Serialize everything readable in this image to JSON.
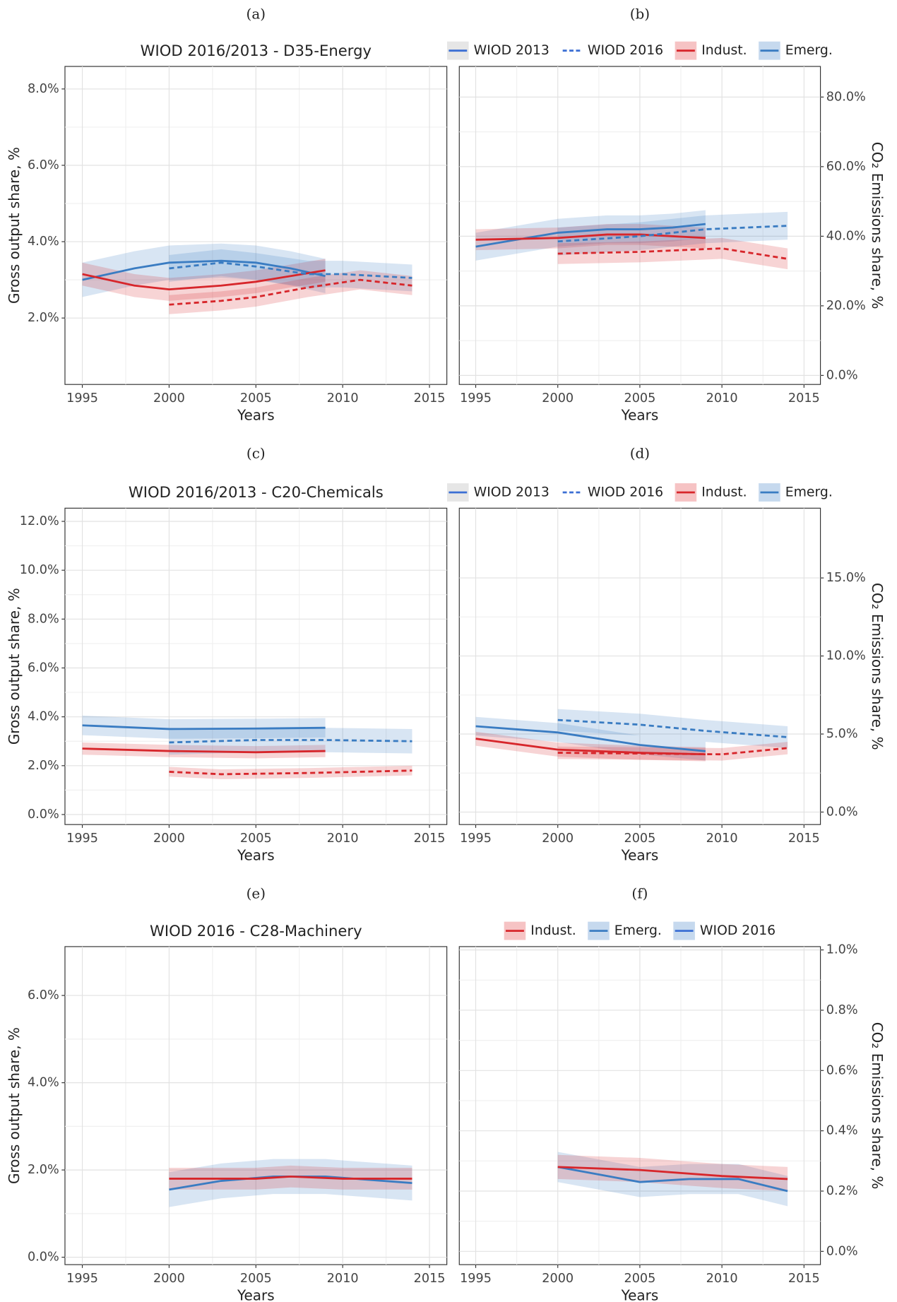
{
  "chart_data": [
    {
      "type": "line",
      "panel_label": "(a)",
      "title": "WIOD 2016/2013 - D35-Energy",
      "x_label": "Years",
      "y_label": "Gross output share, %",
      "y_side": "left",
      "xlim": [
        1994,
        2016
      ],
      "xticks": [
        1995,
        2000,
        2005,
        2010,
        2015
      ],
      "ylim": [
        0.26,
        8.59
      ],
      "yticks": [
        {
          "value": 2,
          "label": "2.0%"
        },
        {
          "value": 4,
          "label": "4.0%"
        },
        {
          "value": 6,
          "label": "6.0%"
        },
        {
          "value": 8,
          "label": "8.0%"
        }
      ],
      "series": [
        {
          "color": "#3a7cc2",
          "dashed": false,
          "x": [
            1995,
            1998,
            2000,
            2003,
            2005,
            2007,
            2009
          ],
          "values": [
            3.0,
            3.3,
            3.45,
            3.5,
            3.45,
            3.3,
            3.1
          ],
          "ci": 0.45
        },
        {
          "color": "#d7262b",
          "dashed": false,
          "x": [
            1995,
            1998,
            2000,
            2003,
            2005,
            2007,
            2009
          ],
          "values": [
            3.15,
            2.85,
            2.75,
            2.85,
            2.95,
            3.1,
            3.25
          ],
          "ci": 0.3
        },
        {
          "color": "#3a7cc2",
          "dashed": true,
          "x": [
            2000,
            2003,
            2005,
            2008,
            2010,
            2014
          ],
          "values": [
            3.3,
            3.45,
            3.35,
            3.15,
            3.15,
            3.05
          ],
          "ci": 0.35
        },
        {
          "color": "#d7262b",
          "dashed": true,
          "x": [
            2000,
            2003,
            2005,
            2008,
            2011,
            2014
          ],
          "values": [
            2.35,
            2.45,
            2.55,
            2.8,
            3.0,
            2.85
          ],
          "ci": 0.25
        }
      ]
    },
    {
      "type": "line",
      "panel_label": "(b)",
      "x_label": "Years",
      "y_label": "CO₂ Emissions share, %",
      "y_side": "right",
      "xlim": [
        1994,
        2016
      ],
      "xticks": [
        1995,
        2000,
        2005,
        2010,
        2015
      ],
      "ylim": [
        -2.6,
        88.8
      ],
      "yticks": [
        {
          "value": 0,
          "label": "0.0%"
        },
        {
          "value": 20,
          "label": "20.0%"
        },
        {
          "value": 40,
          "label": "40.0%"
        },
        {
          "value": 60,
          "label": "60.0%"
        },
        {
          "value": 80,
          "label": "80.0%"
        }
      ],
      "legend": [
        {
          "label": "WIOD 2013",
          "color": "#3b6fd4",
          "dashed": false,
          "fill": "#e6e6e6"
        },
        {
          "label": "WIOD 2016",
          "color": "#3b6fd4",
          "dashed": true,
          "fill": "#ffffff"
        },
        {
          "label": "Indust.",
          "color": "#d7262b",
          "dashed": false,
          "fill": "#f6c3c4"
        },
        {
          "label": "Emerg.",
          "color": "#3a7cc2",
          "dashed": false,
          "fill": "#c6d9ee"
        }
      ],
      "series": [
        {
          "color": "#3a7cc2",
          "dashed": false,
          "x": [
            1995,
            2000,
            2003,
            2005,
            2007,
            2009
          ],
          "values": [
            37,
            41,
            42,
            42,
            42.5,
            43.5
          ],
          "ci": 4
        },
        {
          "color": "#d7262b",
          "dashed": false,
          "x": [
            1995,
            2000,
            2003,
            2005,
            2009
          ],
          "values": [
            39,
            39.5,
            40.5,
            40.5,
            39.5
          ],
          "ci": 3
        },
        {
          "color": "#3a7cc2",
          "dashed": true,
          "x": [
            2000,
            2005,
            2009,
            2014
          ],
          "values": [
            38.5,
            40,
            42,
            43
          ],
          "ci": 4
        },
        {
          "color": "#d7262b",
          "dashed": true,
          "x": [
            2000,
            2005,
            2010,
            2014
          ],
          "values": [
            35,
            35.5,
            36.5,
            33.5
          ],
          "ci": 3
        }
      ]
    },
    {
      "type": "line",
      "panel_label": "(c)",
      "title": "WIOD 2016/2013 - C20-Chemicals",
      "x_label": "Years",
      "y_label": "Gross output share, %",
      "y_side": "left",
      "xlim": [
        1994,
        2016
      ],
      "xticks": [
        1995,
        2000,
        2005,
        2010,
        2015
      ],
      "ylim": [
        -0.41,
        12.54
      ],
      "yticks": [
        {
          "value": 0,
          "label": "0.0%"
        },
        {
          "value": 2,
          "label": "2.0%"
        },
        {
          "value": 4,
          "label": "4.0%"
        },
        {
          "value": 6,
          "label": "6.0%"
        },
        {
          "value": 8,
          "label": "8.0%"
        },
        {
          "value": 10,
          "label": "10.0%"
        },
        {
          "value": 12,
          "label": "12.0%"
        }
      ],
      "series": [
        {
          "color": "#3a7cc2",
          "dashed": false,
          "x": [
            1995,
            2000,
            2005,
            2009
          ],
          "values": [
            3.65,
            3.5,
            3.52,
            3.55
          ],
          "ci": 0.4
        },
        {
          "color": "#d7262b",
          "dashed": false,
          "x": [
            1995,
            2000,
            2005,
            2009
          ],
          "values": [
            2.7,
            2.6,
            2.55,
            2.6
          ],
          "ci": 0.25
        },
        {
          "color": "#3a7cc2",
          "dashed": true,
          "x": [
            2000,
            2005,
            2009,
            2014
          ],
          "values": [
            2.95,
            3.05,
            3.05,
            3.0
          ],
          "ci": 0.5
        },
        {
          "color": "#d7262b",
          "dashed": true,
          "x": [
            2000,
            2003,
            2008,
            2014
          ],
          "values": [
            1.75,
            1.65,
            1.7,
            1.8
          ],
          "ci": 0.2
        }
      ]
    },
    {
      "type": "line",
      "panel_label": "(d)",
      "x_label": "Years",
      "y_label": "CO₂ Emissions share, %",
      "y_side": "right",
      "xlim": [
        1994,
        2016
      ],
      "xticks": [
        1995,
        2000,
        2005,
        2010,
        2015
      ],
      "ylim": [
        -0.8,
        19.47
      ],
      "yticks": [
        {
          "value": 0,
          "label": "0.0%"
        },
        {
          "value": 5,
          "label": "5.0%"
        },
        {
          "value": 10,
          "label": "10.0%"
        },
        {
          "value": 15,
          "label": "15.0%"
        }
      ],
      "legend": [
        {
          "label": "WIOD 2013",
          "color": "#3b6fd4",
          "dashed": false,
          "fill": "#e6e6e6"
        },
        {
          "label": "WIOD 2016",
          "color": "#3b6fd4",
          "dashed": true,
          "fill": "#ffffff"
        },
        {
          "label": "Indust.",
          "color": "#d7262b",
          "dashed": false,
          "fill": "#f6c3c4"
        },
        {
          "label": "Emerg.",
          "color": "#3a7cc2",
          "dashed": false,
          "fill": "#c6d9ee"
        }
      ],
      "series": [
        {
          "color": "#3a7cc2",
          "dashed": false,
          "x": [
            1995,
            2000,
            2005,
            2009
          ],
          "values": [
            5.5,
            5.1,
            4.3,
            3.9
          ],
          "ci": 0.6
        },
        {
          "color": "#d7262b",
          "dashed": false,
          "x": [
            1995,
            2000,
            2005,
            2009
          ],
          "values": [
            4.7,
            4.0,
            3.8,
            3.7
          ],
          "ci": 0.45
        },
        {
          "color": "#3a7cc2",
          "dashed": true,
          "x": [
            2000,
            2005,
            2009,
            2014
          ],
          "values": [
            5.9,
            5.6,
            5.2,
            4.8
          ],
          "ci": 0.7
        },
        {
          "color": "#d7262b",
          "dashed": true,
          "x": [
            2000,
            2005,
            2010,
            2014
          ],
          "values": [
            3.8,
            3.75,
            3.7,
            4.1
          ],
          "ci": 0.4
        }
      ]
    },
    {
      "type": "line",
      "panel_label": "(e)",
      "title": "WIOD 2016 - C28-Machinery",
      "x_label": "Years",
      "y_label": "Gross output share, %",
      "y_side": "left",
      "xlim": [
        1994,
        2016
      ],
      "xticks": [
        1995,
        2000,
        2005,
        2010,
        2015
      ],
      "ylim": [
        -0.17,
        7.12
      ],
      "yticks": [
        {
          "value": 0,
          "label": "0.0%"
        },
        {
          "value": 2,
          "label": "2.0%"
        },
        {
          "value": 4,
          "label": "4.0%"
        },
        {
          "value": 6,
          "label": "6.0%"
        }
      ],
      "series": [
        {
          "color": "#3a7cc2",
          "dashed": false,
          "x": [
            2000,
            2003,
            2006,
            2009,
            2014
          ],
          "values": [
            1.55,
            1.75,
            1.85,
            1.85,
            1.7
          ],
          "ci": 0.4
        },
        {
          "color": "#d7262b",
          "dashed": false,
          "x": [
            2000,
            2005,
            2007,
            2010,
            2014
          ],
          "values": [
            1.8,
            1.8,
            1.85,
            1.8,
            1.8
          ],
          "ci": 0.25
        }
      ]
    },
    {
      "type": "line",
      "panel_label": "(f)",
      "x_label": "Years",
      "y_label": "CO₂ Emissions share, %",
      "y_side": "right",
      "xlim": [
        1994,
        2016
      ],
      "xticks": [
        1995,
        2000,
        2005,
        2010,
        2015
      ],
      "ylim": [
        -0.044,
        1.011
      ],
      "yticks": [
        {
          "value": 0,
          "label": "0.0%"
        },
        {
          "value": 0.2,
          "label": "0.2%"
        },
        {
          "value": 0.4,
          "label": "0.4%"
        },
        {
          "value": 0.6,
          "label": "0.6%"
        },
        {
          "value": 0.8,
          "label": "0.8%"
        },
        {
          "value": 1.0,
          "label": "1.0%"
        }
      ],
      "legend": [
        {
          "label": "Indust.",
          "color": "#d7262b",
          "dashed": false,
          "fill": "#f6c3c4"
        },
        {
          "label": "Emerg.",
          "color": "#3a7cc2",
          "dashed": false,
          "fill": "#c6d9ee"
        },
        {
          "label": "WIOD 2016",
          "color": "#3b6fd4",
          "dashed": false,
          "fill": "#c6d9ee"
        }
      ],
      "series": [
        {
          "color": "#3a7cc2",
          "dashed": false,
          "x": [
            2000,
            2003,
            2005,
            2008,
            2011,
            2014
          ],
          "values": [
            0.28,
            0.25,
            0.23,
            0.24,
            0.24,
            0.2
          ],
          "ci": 0.05
        },
        {
          "color": "#d7262b",
          "dashed": false,
          "x": [
            2000,
            2005,
            2010,
            2014
          ],
          "values": [
            0.28,
            0.27,
            0.25,
            0.24
          ],
          "ci": 0.04
        }
      ]
    }
  ]
}
